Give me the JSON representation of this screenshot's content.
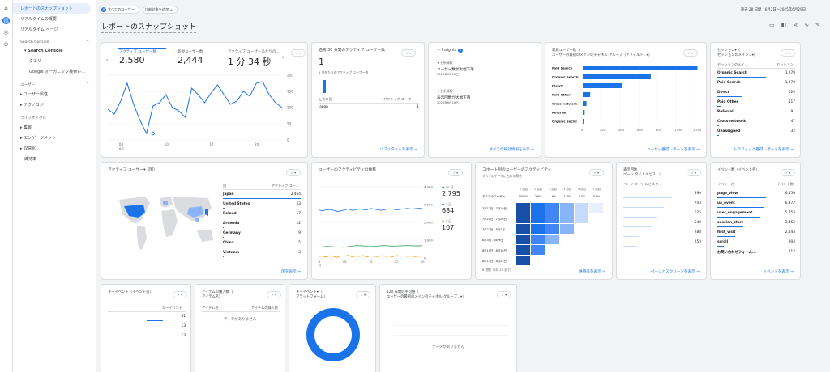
{
  "rail": {
    "icons": [
      "home-icon",
      "reports-icon",
      "explore-icon",
      "advertising-icon"
    ]
  },
  "sidebar": {
    "items": [
      "レポートのスナップショット",
      "リアルタイムの概要",
      "リアルタイム ページ"
    ],
    "sc_section": "Search Console",
    "sc_sub": "Search Console",
    "sc_items": [
      "クエリ",
      "Google オーガニック検索レ..."
    ],
    "user_section": "ユーザー",
    "user_items": [
      "ユーザー属性",
      "テクノロジー"
    ],
    "life_section": "ライフサイクル",
    "life_items": [
      "集客",
      "エンゲージメント",
      "収益化",
      "維持率"
    ]
  },
  "header": {
    "all_users": "すべてのユーザー",
    "add_compare": "比較対象を追加",
    "date_range": "過去 28 日間　6月2日～2025年6月29日",
    "title": "レポートのスナップショット"
  },
  "overview": {
    "metrics": [
      {
        "label": "アクティブ ユーザー数",
        "value": "2,580"
      },
      {
        "label": "新規ユーザー数",
        "value": "2,444"
      },
      {
        "label": "アクティブ ユーザーあたりの...",
        "value": "1 分 34 秒"
      }
    ],
    "yticks": [
      "200",
      "150",
      "100",
      "50",
      "0"
    ],
    "xticks": [
      "03\n6月",
      "10",
      "17",
      "24"
    ]
  },
  "chart_data": {
    "type": "line",
    "x": [
      1,
      2,
      3,
      4,
      5,
      6,
      7,
      8,
      9,
      10,
      11,
      12,
      13,
      14,
      15,
      16,
      17,
      18,
      19,
      20,
      21,
      22,
      23,
      24,
      25,
      26,
      27,
      28
    ],
    "values": [
      95,
      80,
      120,
      175,
      110,
      60,
      20,
      105,
      115,
      140,
      100,
      90,
      70,
      160,
      140,
      115,
      145,
      170,
      140,
      110,
      120,
      150,
      135,
      175,
      180,
      140,
      115,
      100
    ],
    "ylim": [
      0,
      200
    ]
  },
  "realtime": {
    "title": "過去 30 分間のアクティブ ユーザー数",
    "value": "1",
    "sub": "1 分あたりのアクティブ ユーザー数",
    "col1": "上位の国",
    "col2": "アクティブ ユーザー",
    "country": "Japan",
    "count": "1",
    "link": "リアルタイムを表示"
  },
  "insights": {
    "title": "Insights",
    "badge": "2",
    "items": [
      {
        "tag": "分析情報",
        "text": "ユーザー数が大幅下落",
        "date": "2025年6月18日"
      },
      {
        "tag": "分析情報",
        "text": "表示回数が大幅下落",
        "date": "2025年6月18日"
      }
    ],
    "link": "すべての統計情報を表示"
  },
  "channels": {
    "title": "新規ユーザー数（\nユーザーの最初のメインのチャネル グループ（デフォルト...▾）",
    "labels": [
      "Paid Search",
      "Organic Search",
      "Direct",
      "Paid Other",
      "Cross-network",
      "Referral",
      "Organic Social"
    ],
    "values": [
      1230,
      730,
      420,
      80,
      40,
      20,
      5
    ],
    "xticks": [
      "0",
      "200",
      "400",
      "600",
      "800",
      "1,000",
      "1,200"
    ],
    "link": "ユーザー獲得レポートを表示"
  },
  "sessions": {
    "title": "セッション▾（\nセッションのメイン...▾）",
    "col1": "セッションのメイ...",
    "col2": "セッション",
    "rows": [
      [
        "Organic Search",
        "1,278"
      ],
      [
        "Paid Search",
        "1,270"
      ],
      [
        "Direct",
        "629"
      ],
      [
        "Paid Other",
        "117"
      ],
      [
        "Referral",
        "91"
      ],
      [
        "Cross-network",
        "47"
      ],
      [
        "Unassigned",
        "32"
      ]
    ],
    "link": "トラフィック獲得レポートを表示"
  },
  "geo": {
    "title": "アクティブ ユーザー▾（国）",
    "col1": "国",
    "col2": "アクティブ ユー...",
    "rows": [
      [
        "Japan",
        "2,464"
      ],
      [
        "United States",
        "53"
      ],
      [
        "Poland",
        "17"
      ],
      [
        "Armenia",
        "12"
      ],
      [
        "Germany",
        "9"
      ],
      [
        "China",
        "5"
      ],
      [
        "Vietnam",
        "3"
      ]
    ],
    "link": "国を表示"
  },
  "trend": {
    "title": "ユーザーのアクティビティの推移",
    "yticks": [
      "4,000",
      "3,000",
      "2,000",
      "1,000",
      "0"
    ],
    "xticks": [
      "01\n6月",
      "08",
      "15",
      "22",
      "29"
    ],
    "legend": [
      {
        "label": "30 日",
        "value": "2,795",
        "color": "#1a73e8"
      },
      {
        "label": "7 日",
        "value": "684",
        "color": "#34a853"
      },
      {
        "label": "1 日",
        "value": "107",
        "color": "#f29900"
      }
    ]
  },
  "cohort": {
    "title": "コホート別のユーザーのアクティビティ",
    "sub": "すべてのデータに占める割合",
    "headers": [
      "0 週目",
      "1 週目",
      "2 週目",
      "3 週目",
      "4 週目",
      "5 週目"
    ],
    "all_label": "すべてのユーザー",
    "all_vals": [
      "100.0%",
      "2.6%",
      "1.6%",
      "1.3%",
      "1.0%",
      "0.8%"
    ],
    "rows": [
      "7月13日 - 7月19日",
      "7月20日 - 7月26日",
      "7月27日 - 8月2日",
      "8月3日 - 8月9日",
      "8月10日 - 8月16日",
      "8月17日 - 8月23日"
    ],
    "footer": "6 週間（8月 23 まで）",
    "link": "維持率を表示"
  },
  "pages": {
    "title": "表示回数（\nページ タイトルとス...）",
    "col1": "ページ タイトルとスク...",
    "values": [
      "890",
      "743",
      "625",
      "540",
      "288",
      "253"
    ],
    "link": "ページとスクリーンを表示"
  },
  "events": {
    "title": "イベント数（イベント名）",
    "col1": "イベント名",
    "col2": "イベント数",
    "rows": [
      [
        "page_view",
        "6,556"
      ],
      [
        "ua_event",
        "6,372"
      ],
      [
        "user_engagement",
        "5,753"
      ],
      [
        "session_start",
        "3,462"
      ],
      [
        "first_visit",
        "2,444"
      ],
      [
        "scroll",
        "904"
      ],
      [
        "お問い合わせフォーム...",
        "212"
      ]
    ],
    "link": "イベントを表示"
  },
  "keyevents": {
    "title": "キーイベント（イベント名）",
    "col": "キーイベント",
    "values": [
      "41",
      "13",
      "13"
    ]
  },
  "purchases": {
    "title": "アイテムの購入数（\nアイテム名）",
    "col1": "アイテム名",
    "col2": "アイテムの購入数",
    "empty": "データがありません"
  },
  "keyplatform": {
    "title": "キーイベント▾（\nプラットフォーム）"
  },
  "ltv": {
    "title": "120 日間の平均値（\nユーザーの最初のメインのチャネル グループ...▾）",
    "empty": "データがありません"
  }
}
